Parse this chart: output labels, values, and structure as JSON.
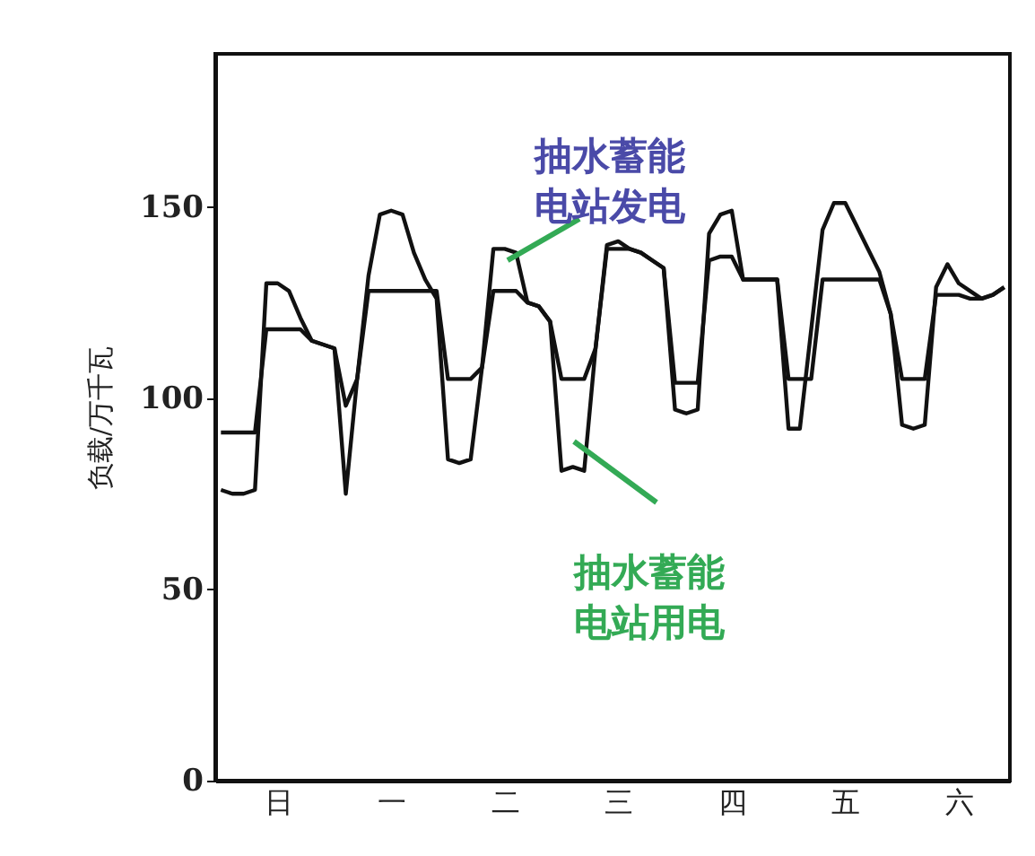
{
  "chart_data": {
    "type": "line",
    "ylabel": "负载/万千瓦",
    "categories": [
      null,
      null,
      null,
      null,
      null,
      "日",
      null,
      null,
      null,
      null,
      null,
      null,
      null,
      null,
      null,
      "一",
      null,
      null,
      null,
      null,
      null,
      null,
      null,
      null,
      null,
      "二",
      null,
      null,
      null,
      null,
      null,
      null,
      null,
      null,
      null,
      "三",
      null,
      null,
      null,
      null,
      null,
      null,
      null,
      null,
      null,
      "四",
      null,
      null,
      null,
      null,
      null,
      null,
      null,
      null,
      null,
      "五",
      null,
      null,
      null,
      null,
      null,
      null,
      null,
      null,
      null,
      "六",
      null,
      null,
      null,
      null
    ],
    "ylim": [
      0,
      190
    ],
    "yticks": [
      0,
      50,
      100,
      150
    ],
    "grid": false,
    "marker": "none",
    "line_style": "solid",
    "series": [
      {
        "color": "#111111",
        "values": [
          76,
          75,
          75,
          76,
          130,
          130,
          128,
          121,
          115,
          114,
          113,
          75,
          105,
          132,
          148,
          149,
          148,
          138,
          131,
          126,
          84,
          83,
          84,
          108,
          139,
          139,
          138,
          125,
          124,
          120,
          81,
          82,
          81,
          113,
          140,
          141,
          139,
          138,
          136,
          134,
          97,
          96,
          97,
          143,
          148,
          149,
          131,
          131,
          131,
          131,
          92,
          92,
          118,
          144,
          151,
          151,
          145,
          139,
          133,
          122,
          93,
          92,
          93,
          129,
          135,
          130,
          128,
          126,
          127,
          129
        ]
      },
      {
        "color": "#111111",
        "values": [
          91,
          91,
          91,
          91,
          118,
          118,
          118,
          118,
          115,
          114,
          113,
          98,
          105,
          128,
          128,
          128,
          128,
          128,
          128,
          128,
          105,
          105,
          105,
          108,
          128,
          128,
          128,
          125,
          124,
          120,
          105,
          105,
          105,
          113,
          139,
          139,
          139,
          138,
          136,
          134,
          104,
          104,
          104,
          136,
          137,
          137,
          131,
          131,
          131,
          131,
          105,
          105,
          105,
          131,
          131,
          131,
          131,
          131,
          131,
          122,
          105,
          105,
          105,
          127,
          127,
          127,
          126,
          126,
          127,
          129
        ]
      }
    ],
    "annotations": [
      {
        "text": "抽水蓄能电站发电",
        "y": 136
      },
      "抽水蓄能电站用电"
    ]
  }
}
